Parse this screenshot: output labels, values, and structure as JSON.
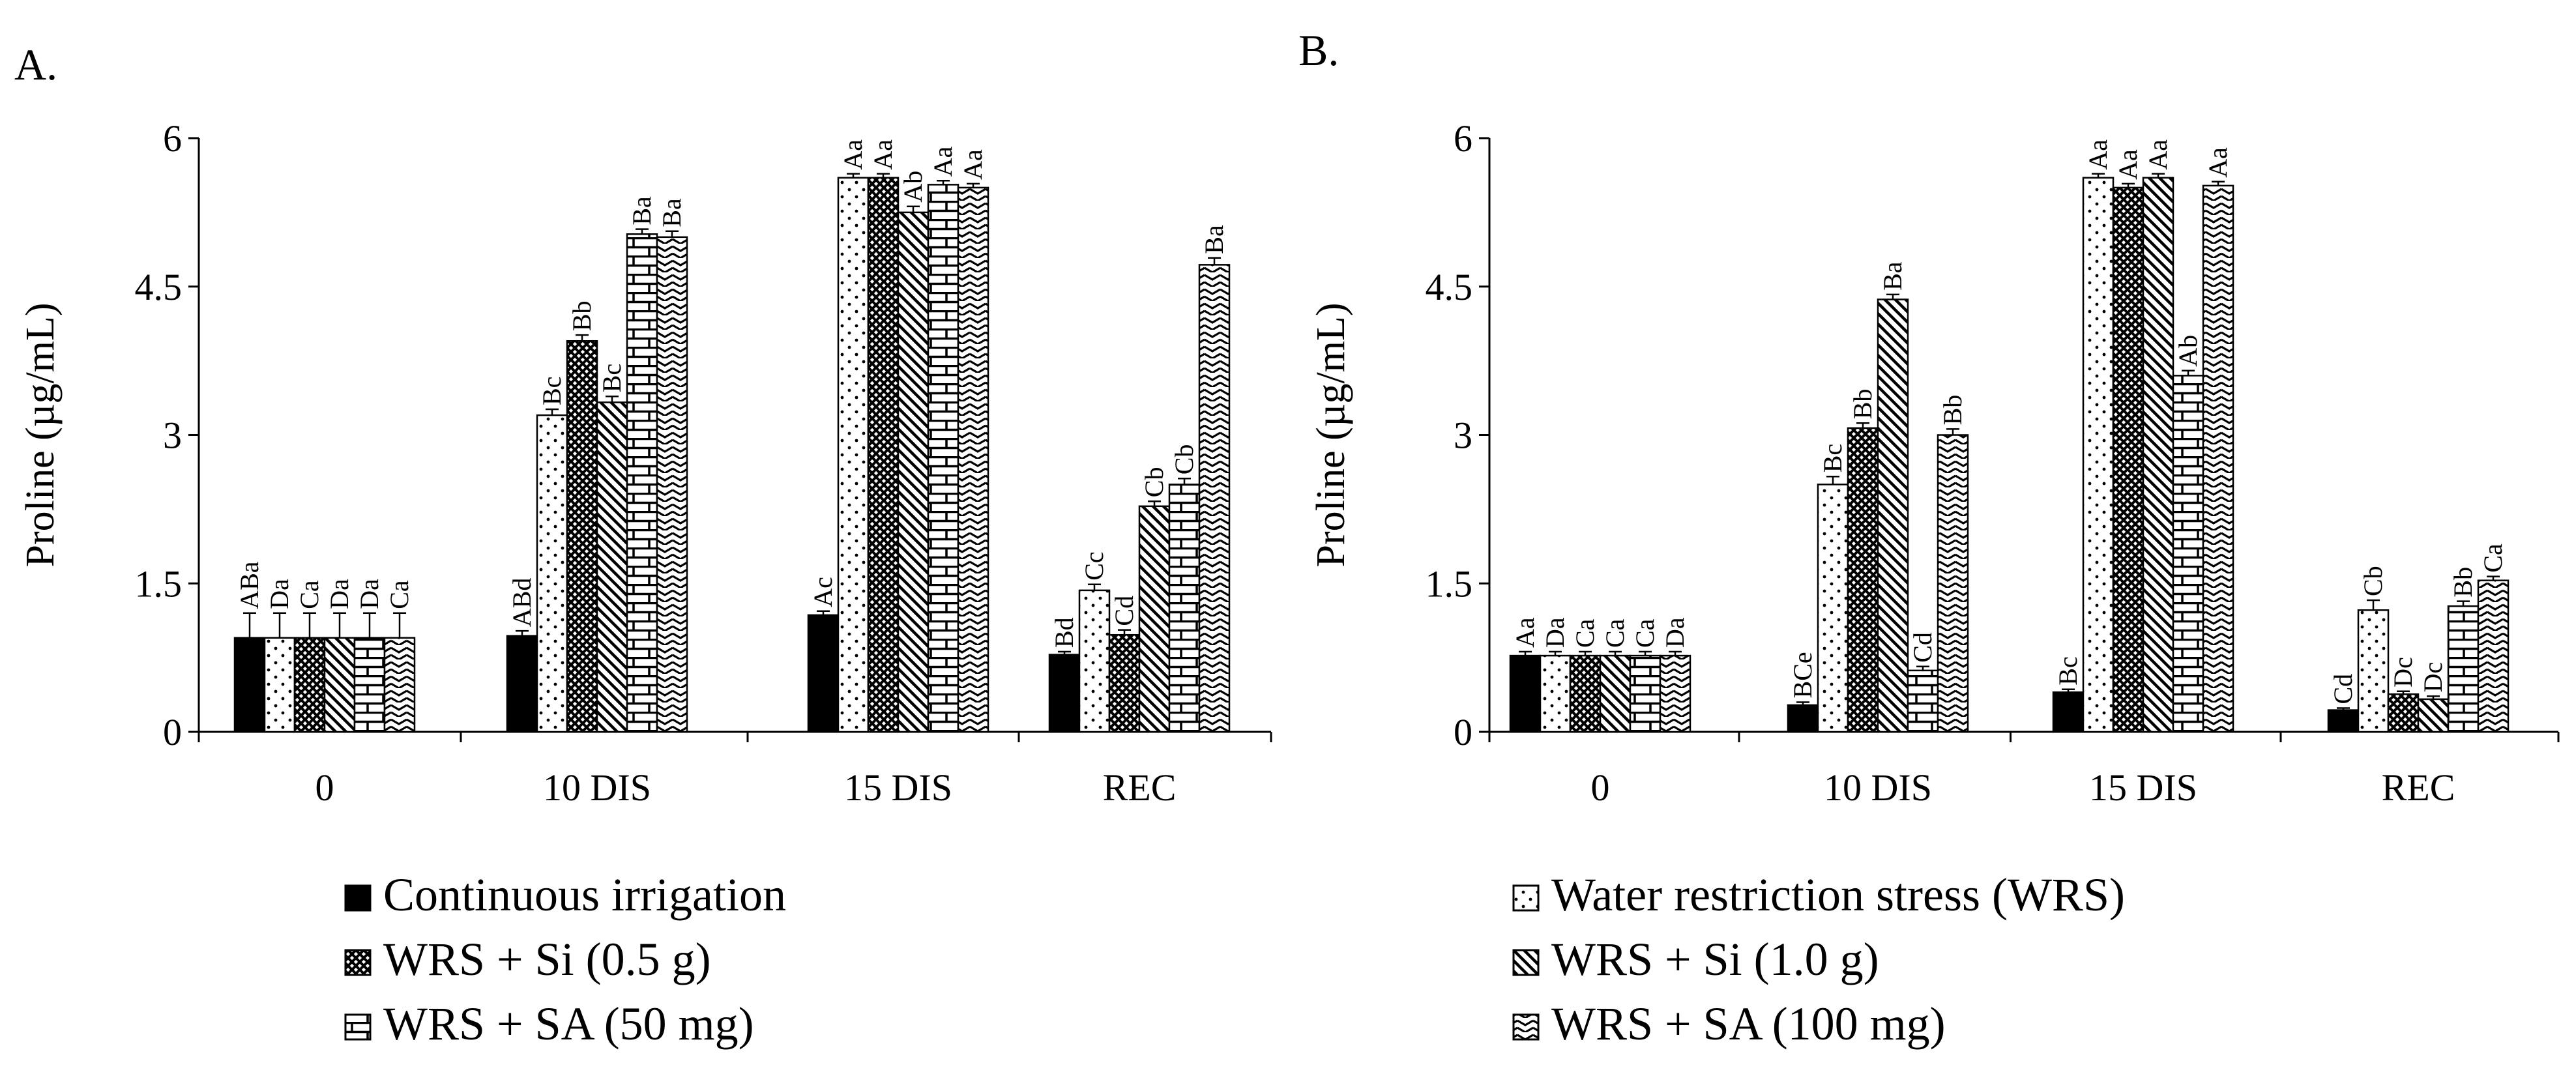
{
  "chart_data": [
    {
      "type": "bar",
      "panel": "A.",
      "ylabel": "Proline (µg/mL)",
      "ylim": [
        0,
        6
      ],
      "yticks": [
        "0",
        "1.5",
        "3",
        "4.5",
        "6"
      ],
      "categories": [
        "0",
        "10 DIS",
        "15 DIS",
        "REC"
      ],
      "series": [
        {
          "name": "Continuous irrigation",
          "pattern": "solid",
          "values": [
            0.95,
            0.97,
            1.18,
            0.78
          ],
          "errors": [
            0.25,
            0.05,
            0.04,
            0.03
          ],
          "letters": [
            "ABa",
            "ABd",
            "Ac",
            "Bd"
          ]
        },
        {
          "name": "Water restriction stress (WRS)",
          "pattern": "dots",
          "values": [
            0.95,
            3.2,
            5.6,
            1.43
          ],
          "errors": [
            0.25,
            0.06,
            0.04,
            0.06
          ],
          "letters": [
            "Da",
            "Bc",
            "Aa",
            "Cc"
          ]
        },
        {
          "name": "WRS + Si (0.5 g)",
          "pattern": "crosshatch",
          "values": [
            0.95,
            3.95,
            5.6,
            0.98
          ],
          "errors": [
            0.25,
            0.06,
            0.04,
            0.05
          ],
          "letters": [
            "Ca",
            "Bb",
            "Aa",
            "Cd"
          ]
        },
        {
          "name": "WRS + Si (1.0 g)",
          "pattern": "diagonal",
          "values": [
            0.95,
            3.33,
            5.25,
            2.28
          ],
          "errors": [
            0.25,
            0.06,
            0.06,
            0.05
          ],
          "letters": [
            "Da",
            "Bc",
            "Ab",
            "Cb"
          ]
        },
        {
          "name": "WRS + SA (50 mg)",
          "pattern": "brick",
          "values": [
            0.95,
            5.03,
            5.53,
            2.5
          ],
          "errors": [
            0.25,
            0.05,
            0.04,
            0.06
          ],
          "letters": [
            "Da",
            "Ba",
            "Aa",
            "Cb"
          ]
        },
        {
          "name": "WRS + SA (100 mg)",
          "pattern": "zigzag",
          "values": [
            0.95,
            5.0,
            5.5,
            4.72
          ],
          "errors": [
            0.25,
            0.06,
            0.04,
            0.07
          ],
          "letters": [
            "Ca",
            "Ba",
            "Aa",
            "Ba"
          ]
        }
      ]
    },
    {
      "type": "bar",
      "panel": "B.",
      "ylabel": "Proline (µg/mL)",
      "ylim": [
        0,
        6
      ],
      "yticks": [
        "0",
        "1.5",
        "3",
        "4.5",
        "6"
      ],
      "categories": [
        "0",
        "10 DIS",
        "15 DIS",
        "REC"
      ],
      "series": [
        {
          "name": "Continuous irrigation",
          "pattern": "solid",
          "values": [
            0.77,
            0.27,
            0.4,
            0.22
          ],
          "errors": [
            0.04,
            0.03,
            0.03,
            0.02
          ],
          "letters": [
            "Aa",
            "BCe",
            "Bc",
            "Cd"
          ]
        },
        {
          "name": "Water restriction stress (WRS)",
          "pattern": "dots",
          "values": [
            0.77,
            2.5,
            5.6,
            1.23
          ],
          "errors": [
            0.04,
            0.08,
            0.04,
            0.1
          ],
          "letters": [
            "Da",
            "Bc",
            "Aa",
            "Cb"
          ]
        },
        {
          "name": "WRS + Si (0.5 g)",
          "pattern": "crosshatch",
          "values": [
            0.77,
            3.07,
            5.5,
            0.38
          ],
          "errors": [
            0.04,
            0.05,
            0.04,
            0.03
          ],
          "letters": [
            "Ca",
            "Bb",
            "Aa",
            "Dc"
          ]
        },
        {
          "name": "WRS + Si (1.0 g)",
          "pattern": "diagonal",
          "values": [
            0.77,
            4.37,
            5.6,
            0.33
          ],
          "errors": [
            0.04,
            0.05,
            0.04,
            0.03
          ],
          "letters": [
            "Ca",
            "Ba",
            "Aa",
            "Dc"
          ]
        },
        {
          "name": "WRS + SA (50 mg)",
          "pattern": "brick",
          "values": [
            0.77,
            0.62,
            3.6,
            1.27
          ],
          "errors": [
            0.04,
            0.04,
            0.05,
            0.05
          ],
          "letters": [
            "Ca",
            "Cd",
            "Ab",
            "Bb"
          ]
        },
        {
          "name": "WRS + SA (100 mg)",
          "pattern": "zigzag",
          "values": [
            0.77,
            3.0,
            5.52,
            1.53
          ],
          "errors": [
            0.04,
            0.06,
            0.04,
            0.04
          ],
          "letters": [
            "Da",
            "Bb",
            "Aa",
            "Ca"
          ]
        }
      ]
    }
  ],
  "legend": {
    "left": [
      "Continuous irrigation",
      "WRS + Si (0.5 g)",
      "WRS + SA (50 mg)"
    ],
    "right": [
      "Water restriction stress (WRS)",
      "WRS + Si (1.0 g)",
      "WRS + SA (100 mg)"
    ]
  }
}
